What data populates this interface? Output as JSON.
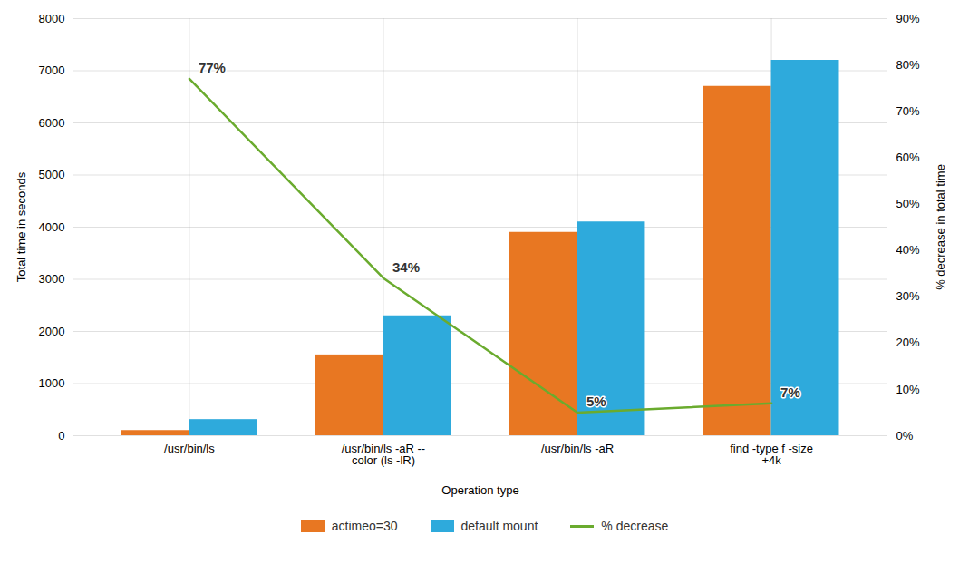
{
  "chart_data": {
    "type": "bar",
    "categories": [
      "/usr/bin/ls",
      "/usr/bin/ls -aR --\ncolor (ls -lR)",
      "/usr/bin/ls -aR",
      "find -type f -size\n+4k"
    ],
    "xlabel": "Operation type",
    "ylabel": "Total time in seconds",
    "y2label": "% decrease in total time",
    "ylim": [
      0,
      8000
    ],
    "yticks": [
      0,
      1000,
      2000,
      3000,
      4000,
      5000,
      6000,
      7000,
      8000
    ],
    "y2lim": [
      0,
      0.9
    ],
    "y2ticks": [
      {
        "value": 0.0,
        "label": "0%"
      },
      {
        "value": 0.1,
        "label": "10%"
      },
      {
        "value": 0.2,
        "label": "20%"
      },
      {
        "value": 0.3,
        "label": "30%"
      },
      {
        "value": 0.4,
        "label": "40%"
      },
      {
        "value": 0.5,
        "label": "50%"
      },
      {
        "value": 0.6,
        "label": "60%"
      },
      {
        "value": 0.7,
        "label": "70%"
      },
      {
        "value": 0.8,
        "label": "80%"
      },
      {
        "value": 0.9,
        "label": "90%"
      }
    ],
    "grid": true,
    "legend": "bottom",
    "series": [
      {
        "name": "actimeo=30",
        "color": "#E87722",
        "values": [
          100,
          1550,
          3900,
          6700
        ]
      },
      {
        "name": "default mount",
        "color": "#2EAADC",
        "values": [
          310,
          2300,
          4100,
          7200
        ]
      },
      {
        "name": "% decrease",
        "type": "line",
        "axis": "y2",
        "color": "#6AAB2E",
        "values": [
          0.77,
          0.34,
          0.05,
          0.07
        ],
        "data_labels": true,
        "value_labels": [
          "77%",
          "34%",
          "5%",
          "7%"
        ]
      }
    ]
  }
}
